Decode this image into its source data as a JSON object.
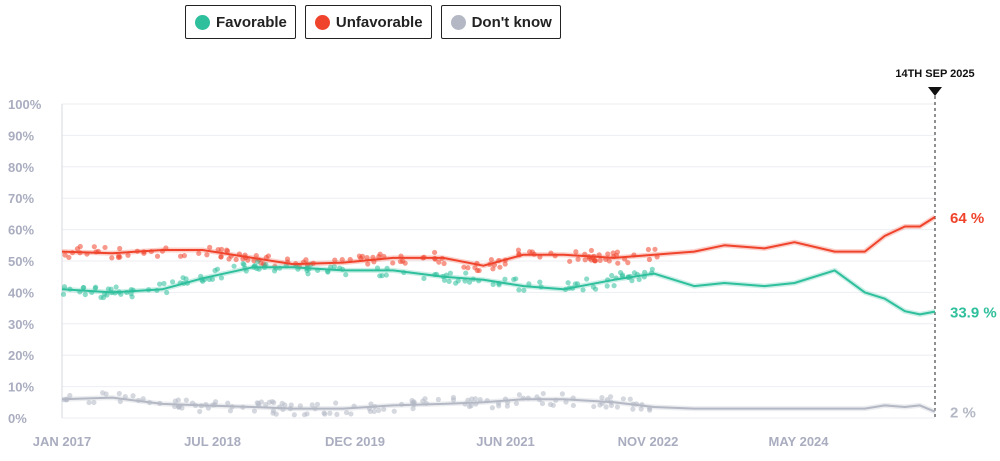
{
  "legend": {
    "favorable": {
      "label": "Favorable",
      "color": "#2ebf9c"
    },
    "unfavorable": {
      "label": "Unfavorable",
      "color": "#f0432c"
    },
    "dont_know": {
      "label": "Don't know",
      "color": "#b3b8c4"
    }
  },
  "chart_data": {
    "type": "line",
    "title": "",
    "xlabel": "",
    "ylabel": "",
    "ylim": [
      0,
      100
    ],
    "y_ticks": [
      "0%",
      "10%",
      "20%",
      "30%",
      "40%",
      "50%",
      "60%",
      "70%",
      "80%",
      "90%",
      "100%"
    ],
    "x_range": [
      2017.0,
      2025.7
    ],
    "x_ticks": [
      {
        "label": "JAN 2017",
        "x": 2017.0
      },
      {
        "label": "JUL 2018",
        "x": 2018.5
      },
      {
        "label": "DEC 2019",
        "x": 2019.92
      },
      {
        "label": "JUN 2021",
        "x": 2021.42
      },
      {
        "label": "NOV 2022",
        "x": 2022.84
      },
      {
        "label": "MAY 2024",
        "x": 2024.34
      }
    ],
    "current_date_label": "14TH SEP 2025",
    "current_date_x": 2025.7,
    "series": [
      {
        "name": "Unfavorable",
        "color": "#f0432c",
        "end_label": "64 %",
        "x": [
          2017.0,
          2017.5,
          2018.0,
          2018.4,
          2018.9,
          2019.3,
          2019.8,
          2020.3,
          2020.8,
          2021.2,
          2021.6,
          2022.0,
          2022.5,
          2022.9,
          2023.3,
          2023.6,
          2024.0,
          2024.3,
          2024.7,
          2025.0,
          2025.2,
          2025.4,
          2025.55,
          2025.7
        ],
        "values": [
          53,
          52.5,
          53.5,
          53.5,
          51,
          49,
          49.5,
          51,
          51,
          48.5,
          52,
          52,
          51,
          52,
          53,
          55,
          54,
          56,
          53,
          53,
          58,
          61,
          61,
          64
        ]
      },
      {
        "name": "Favorable",
        "color": "#2ebf9c",
        "end_label": "33.9 %",
        "x": [
          2017.0,
          2017.5,
          2018.0,
          2018.4,
          2018.9,
          2019.3,
          2019.8,
          2020.3,
          2020.8,
          2021.2,
          2021.6,
          2022.0,
          2022.5,
          2022.9,
          2023.3,
          2023.6,
          2024.0,
          2024.3,
          2024.7,
          2025.0,
          2025.2,
          2025.4,
          2025.55,
          2025.7
        ],
        "values": [
          41,
          40,
          41,
          44.5,
          48,
          48,
          47,
          47,
          45,
          44,
          42,
          41,
          44,
          46,
          42,
          43,
          42,
          43,
          47,
          40,
          38,
          34,
          33,
          33.9
        ]
      },
      {
        "name": "Don't know",
        "color": "#b3b8c4",
        "end_label": "2 %",
        "x": [
          2017.0,
          2017.5,
          2018.0,
          2018.4,
          2018.9,
          2019.3,
          2019.8,
          2020.3,
          2020.8,
          2021.2,
          2021.6,
          2022.0,
          2022.5,
          2022.9,
          2023.3,
          2023.6,
          2024.0,
          2024.3,
          2024.7,
          2025.0,
          2025.2,
          2025.4,
          2025.55,
          2025.7
        ],
        "values": [
          6,
          6.5,
          4.5,
          4,
          3.5,
          3,
          3,
          4,
          4.5,
          5,
          6,
          6,
          5,
          3.5,
          3,
          3,
          3,
          3,
          3,
          3,
          4,
          3.5,
          4,
          2
        ]
      }
    ]
  }
}
